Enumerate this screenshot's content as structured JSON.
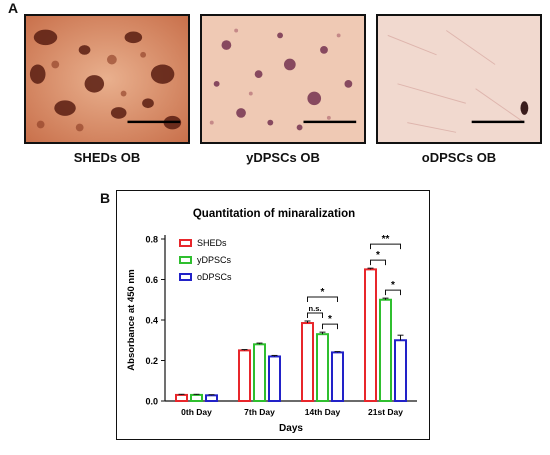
{
  "panel_a": {
    "letter": "A",
    "images": [
      {
        "label": "SHEDs OB",
        "staining": "dense"
      },
      {
        "label": "yDPSCs OB",
        "staining": "moderate"
      },
      {
        "label": "oDPSCs OB",
        "staining": "light"
      }
    ]
  },
  "panel_b": {
    "letter": "B"
  },
  "colors": {
    "SHEDs": "#e8262b",
    "yDPSCs": "#2fbf2f",
    "oDPSCs": "#2222c8"
  },
  "chart_data": {
    "type": "bar",
    "title": "Quantitation of minaralization",
    "xlabel": "Days",
    "ylabel": "Absorbance at 450 nm",
    "ylim": [
      0,
      0.8
    ],
    "yticks": [
      "0.0",
      "0.2",
      "0.4",
      "0.6",
      "0.8"
    ],
    "categories": [
      "0th Day",
      "7th Day",
      "14th Day",
      "21st Day"
    ],
    "series": [
      {
        "name": "SHEDs",
        "values": [
          0.03,
          0.25,
          0.385,
          0.65
        ],
        "errors": [
          0.003,
          0.004,
          0.01,
          0.006
        ]
      },
      {
        "name": "yDPSCs",
        "values": [
          0.03,
          0.28,
          0.33,
          0.5
        ],
        "errors": [
          0.003,
          0.006,
          0.01,
          0.008
        ]
      },
      {
        "name": "oDPSCs",
        "values": [
          0.028,
          0.22,
          0.24,
          0.3
        ],
        "errors": [
          0.003,
          0.005,
          0.004,
          0.025
        ]
      }
    ],
    "legend": "top-left",
    "significance": [
      {
        "category": "14th Day",
        "from": "SHEDs",
        "to": "yDPSCs",
        "label": "n.s."
      },
      {
        "category": "14th Day",
        "from": "SHEDs",
        "to": "oDPSCs",
        "label": "*"
      },
      {
        "category": "14th Day",
        "from": "yDPSCs",
        "to": "oDPSCs",
        "label": "*"
      },
      {
        "category": "21st Day",
        "from": "SHEDs",
        "to": "yDPSCs",
        "label": "*"
      },
      {
        "category": "21st Day",
        "from": "SHEDs",
        "to": "oDPSCs",
        "label": "**"
      },
      {
        "category": "21st Day",
        "from": "yDPSCs",
        "to": "oDPSCs",
        "label": "*"
      }
    ]
  }
}
